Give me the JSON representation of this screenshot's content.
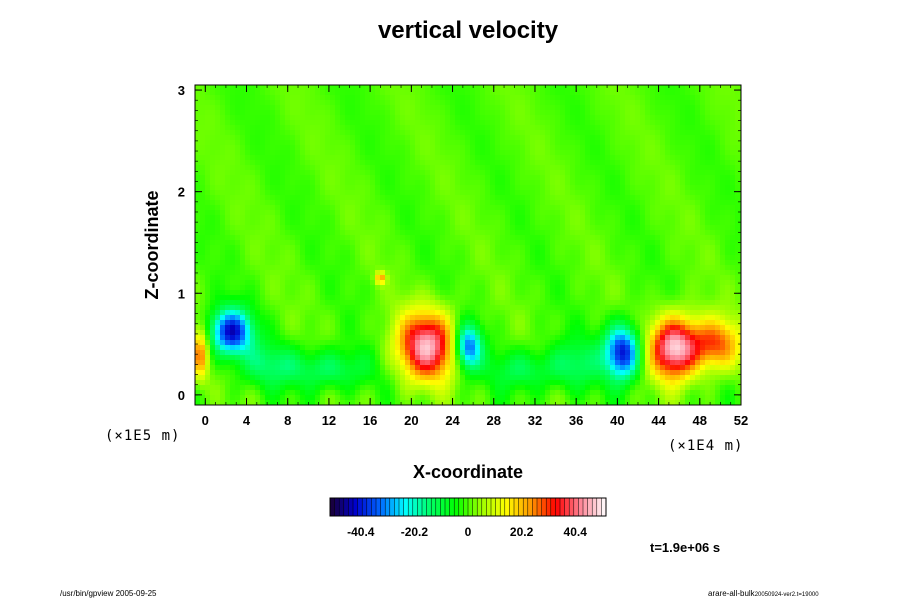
{
  "chart_data": {
    "type": "heatmap",
    "title": "vertical velocity",
    "xlabel": "X-coordinate",
    "ylabel": "Z-coordinate",
    "x_unit": "(×1E4 m)",
    "y_unit": "(×1E5 m)",
    "x_ticks": [
      "0",
      "4",
      "8",
      "12",
      "16",
      "20",
      "24",
      "28",
      "32",
      "36",
      "40",
      "44",
      "48",
      "52"
    ],
    "y_ticks": [
      "0",
      "1",
      "2",
      "3"
    ],
    "xlim": [
      -1,
      52
    ],
    "ylim": [
      -0.1,
      3.05
    ],
    "colorbar": {
      "ticks": [
        "-40.4",
        "-20.2",
        "0",
        "20.2",
        "40.4"
      ],
      "tick_values": [
        -40.4,
        -20.2,
        0,
        20.2,
        40.4
      ],
      "range": [
        -52,
        52
      ],
      "colors": [
        "#1a0033",
        "#0000cc",
        "#0066ff",
        "#00ffff",
        "#00ff66",
        "#00ff00",
        "#99ff00",
        "#ffff00",
        "#ff9900",
        "#ff0000",
        "#ff8899",
        "#ffffff"
      ]
    },
    "features": [
      {
        "x": 2.5,
        "z": 0.62,
        "value": -42,
        "rx": 2.0,
        "rz": 0.22
      },
      {
        "x": 21.5,
        "z": 0.48,
        "value": 45,
        "rx": 2.8,
        "rz": 0.33
      },
      {
        "x": 25.5,
        "z": 0.47,
        "value": -36,
        "rx": 1.3,
        "rz": 0.22
      },
      {
        "x": 40.5,
        "z": 0.42,
        "value": -42,
        "rx": 1.7,
        "rz": 0.26
      },
      {
        "x": 45.5,
        "z": 0.46,
        "value": 48,
        "rx": 2.3,
        "rz": 0.3
      },
      {
        "x": 49.5,
        "z": 0.5,
        "value": 28,
        "rx": 2.5,
        "rz": 0.25
      },
      {
        "x": -0.5,
        "z": 0.4,
        "value": 25,
        "rx": 0.8,
        "rz": 0.25
      },
      {
        "x": 12.0,
        "z": 0.25,
        "value": -14,
        "rx": 4.0,
        "rz": 0.2
      },
      {
        "x": 31.0,
        "z": 0.25,
        "value": -12,
        "rx": 3.5,
        "rz": 0.2
      },
      {
        "x": 6.0,
        "z": 0.3,
        "value": -12,
        "rx": 3.0,
        "rz": 0.22
      },
      {
        "x": 36.0,
        "z": 0.3,
        "value": -12,
        "rx": 2.5,
        "rz": 0.25
      },
      {
        "x": 17.0,
        "z": 1.15,
        "value": 22,
        "rx": 0.5,
        "rz": 0.06
      }
    ],
    "time_label": "t=1.9e+06 s"
  },
  "footer": {
    "left": "/usr/bin/gpview 2005-09-25",
    "right_main": "arare-all-bulk",
    "right_sub": "20050924-ver2.t=19000"
  }
}
